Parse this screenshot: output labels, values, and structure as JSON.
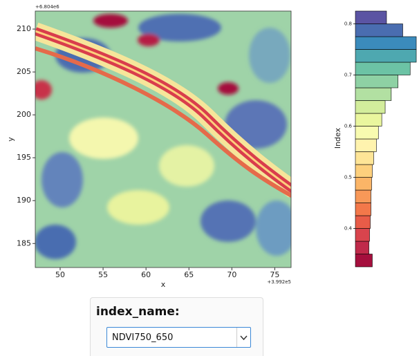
{
  "chart_data": [
    {
      "type": "image",
      "xlabel": "x",
      "ylabel": "y",
      "x_offset_label": "+3.992e5",
      "y_offset_label": "+6.804e6",
      "xlim": [
        47.1,
        76.9
      ],
      "xticks": [
        50,
        55,
        60,
        65,
        70,
        75
      ],
      "ylim": [
        182.2,
        212.1
      ],
      "yticks": [
        185,
        190,
        195,
        200,
        205,
        210
      ]
    },
    {
      "type": "histogram",
      "orientation": "horizontal",
      "ylabel": "Index",
      "bins": [
        0.325,
        0.35,
        0.375,
        0.4,
        0.425,
        0.45,
        0.475,
        0.5,
        0.525,
        0.55,
        0.575,
        0.6,
        0.625,
        0.65,
        0.675,
        0.7,
        0.725,
        0.75,
        0.775,
        0.8,
        0.825
      ],
      "values": [
        25,
        20,
        21,
        22,
        23,
        23,
        24,
        25,
        27,
        31,
        34,
        39,
        44,
        53,
        63,
        81,
        90,
        90,
        70,
        46
      ],
      "colors": [
        "#a50f3d",
        "#c02a4a",
        "#d9444d",
        "#e85c48",
        "#f3784a",
        "#f89858",
        "#fbb567",
        "#fdd07d",
        "#fee597",
        "#fff3ae",
        "#f8fbb0",
        "#eaf69e",
        "#d3ed9c",
        "#b2e0a2",
        "#8ed1a4",
        "#6cc3a5",
        "#4ea8b0",
        "#3b8bbc",
        "#4a6db0",
        "#5b54a3"
      ],
      "xlim": [
        0,
        92
      ],
      "ylim": [
        0.325,
        0.825
      ],
      "yticks": [
        0.4,
        0.5,
        0.6,
        0.7,
        0.8
      ]
    }
  ],
  "widget": {
    "label": "index_name:",
    "value": "NDVI750_650"
  }
}
